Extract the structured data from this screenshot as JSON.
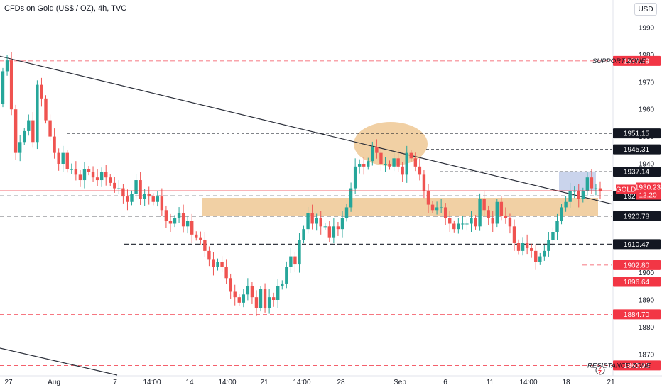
{
  "header": {
    "title": "CFDs on Gold (US$ / OZ), 4h, TVC",
    "currency": "USD"
  },
  "colors": {
    "up": "#26a69a",
    "down": "#ef5350",
    "trend": "#2a2e39",
    "zone": "#e6a95a",
    "box": "#9fb1dc",
    "red_level": "#f23645",
    "black_level": "#131722"
  },
  "chart_data": {
    "type": "candlestick",
    "symbol": "GOLD",
    "timeframe": "4h",
    "ylim": [
      1862,
      2000
    ],
    "y_ticks": [
      1870,
      1880,
      1890,
      1900,
      1910,
      1920,
      1930,
      1940,
      1950,
      1960,
      1970,
      1980,
      1990
    ],
    "x_labels": [
      "27",
      "Aug",
      "7",
      "14:00",
      "14",
      "14:00",
      "21",
      "14:00",
      "28",
      "Sep",
      "6",
      "11",
      "14:00",
      "18",
      "21"
    ],
    "last_price": {
      "label": "GOLD",
      "value": "1930.23",
      "countdown": "12:20"
    },
    "levels": [
      {
        "value": "1977.79",
        "style": "red",
        "label": "SUPPORT ZONE"
      },
      {
        "value": "1951.15",
        "style": "black"
      },
      {
        "value": "1945.31",
        "style": "black"
      },
      {
        "value": "1937.14",
        "style": "black"
      },
      {
        "value": "1928.18",
        "style": "black"
      },
      {
        "value": "1920.78",
        "style": "black"
      },
      {
        "value": "1910.47",
        "style": "black"
      },
      {
        "value": "1902.80",
        "style": "red"
      },
      {
        "value": "1896.64",
        "style": "red"
      },
      {
        "value": "1884.70",
        "style": "red"
      },
      {
        "value": "1865.93",
        "style": "red",
        "label": "RESISTANCE ZONE"
      }
    ],
    "zone": {
      "low": 1920.78,
      "high": 1927.5
    },
    "trendlines": [
      {
        "from": {
          "x": "Jul 26",
          "y": 1979.5
        },
        "to": {
          "x": "Sep 22",
          "y": 1925
        }
      },
      {
        "from": {
          "x": "Jul 26",
          "y": 1883
        },
        "to": {
          "x": "Aug 7",
          "y": 1863
        }
      }
    ],
    "series": [
      {
        "name": "close",
        "values": [
          1974,
          1978,
          1960,
          1944,
          1948,
          1952,
          1956,
          1948,
          1969,
          1964,
          1956,
          1950,
          1944,
          1940,
          1944,
          1938,
          1938,
          1936,
          1934,
          1938,
          1937,
          1935,
          1934,
          1937,
          1935,
          1933,
          1931,
          1931,
          1928,
          1926,
          1929,
          1934,
          1927,
          1929,
          1928,
          1926,
          1928,
          1923,
          1919,
          1918,
          1920,
          1922,
          1917,
          1919,
          1914,
          1913,
          1912,
          1908,
          1905,
          1902,
          1904,
          1902,
          1898,
          1893,
          1891,
          1889,
          1892,
          1895,
          1891,
          1887,
          1894,
          1887,
          1891,
          1890,
          1895,
          1896,
          1902,
          1906,
          1903,
          1912,
          1916,
          1922,
          1918,
          1920,
          1917,
          1917,
          1913,
          1917,
          1916,
          1920,
          1924,
          1931,
          1939,
          1940,
          1939,
          1941,
          1946,
          1944,
          1940,
          1940,
          1939,
          1942,
          1939,
          1936,
          1944,
          1942,
          1939,
          1936,
          1930,
          1925,
          1923,
          1924,
          1924,
          1920,
          1918,
          1916,
          1918,
          1918,
          1918,
          1920,
          1917,
          1927,
          1923,
          1920,
          1918,
          1926,
          1921,
          1920,
          1917,
          1911,
          1908,
          1911,
          1909,
          1908,
          1904,
          1906,
          1908,
          1912,
          1915,
          1919,
          1924,
          1926,
          1930,
          1930,
          1927,
          1930,
          1935,
          1931,
          1931,
          1930
        ]
      }
    ]
  }
}
